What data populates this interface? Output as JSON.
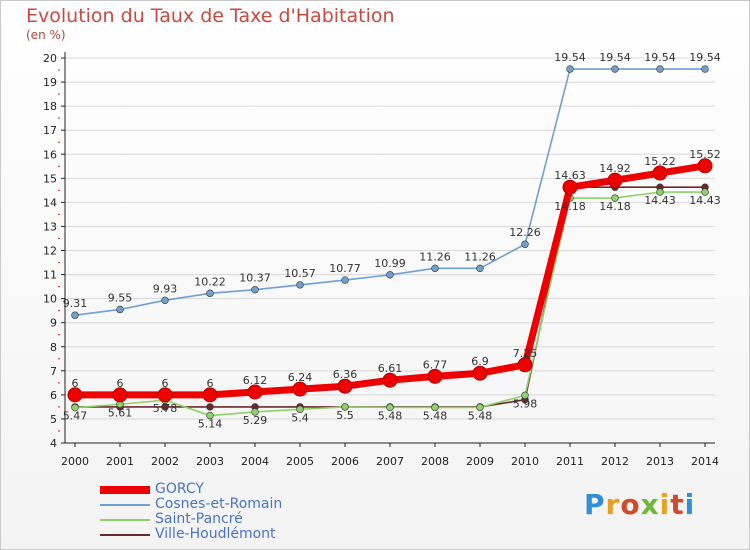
{
  "title": "Evolution du Taux de Taxe d'Habitation",
  "unit_label": "(en %)",
  "logo_text": "Proxiti",
  "colors": {
    "title": "#c94a3f",
    "legend_text": "#4a73c4",
    "axis": "#222222",
    "grid": "#d8d8d8",
    "red_tick": "#e34040"
  },
  "chart_data": {
    "type": "line",
    "title": "Evolution du Taux de Taxe d'Habitation",
    "ylabel": "(en %)",
    "xlabel": "",
    "x": [
      "2000",
      "2001",
      "2002",
      "2003",
      "2004",
      "2005",
      "2006",
      "2007",
      "2008",
      "2009",
      "2010",
      "2011",
      "2012",
      "2013",
      "2014"
    ],
    "ylim": [
      4,
      20
    ],
    "yticks": [
      "4",
      "5",
      "6",
      "7",
      "8",
      "9",
      "10",
      "11",
      "12",
      "13",
      "14",
      "15",
      "16",
      "17",
      "18",
      "19",
      "20"
    ],
    "grid": "horizontal",
    "legend_position": "bottom-left",
    "series": [
      {
        "name": "GORCY",
        "color": "#ee0000",
        "values": [
          6,
          6,
          6,
          6,
          6.12,
          6.24,
          6.36,
          6.61,
          6.77,
          6.9,
          7.25,
          14.63,
          14.92,
          15.22,
          15.52
        ],
        "labels": [
          "6",
          "6",
          "6",
          "6",
          "6.12",
          "6.24",
          "6.36",
          "6.61",
          "6.77",
          "6.9",
          "7.25",
          "14.63",
          "14.92",
          "15.22",
          "15.52"
        ]
      },
      {
        "name": "Cosnes-et-Romain",
        "color": "#6fa0d0",
        "values": [
          9.31,
          9.55,
          9.93,
          10.22,
          10.37,
          10.57,
          10.77,
          10.99,
          11.26,
          11.26,
          12.26,
          19.54,
          19.54,
          19.54,
          19.54
        ],
        "labels": [
          "9.31",
          "9.55",
          "9.93",
          "10.22",
          "10.37",
          "10.57",
          "10.77",
          "10.99",
          "11.26",
          "11.26",
          "12.26",
          "19.54",
          "19.54",
          "19.54",
          "19.54"
        ]
      },
      {
        "name": "Saint-Pancré",
        "color": "#8ed16b",
        "values": [
          5.47,
          5.61,
          5.78,
          5.14,
          5.29,
          5.4,
          5.5,
          5.48,
          5.48,
          5.48,
          5.98,
          14.18,
          14.18,
          14.43,
          14.43
        ],
        "labels": [
          "5.47",
          "5.61",
          "5.78",
          "5.14",
          "5.29",
          "5.4",
          "5.5",
          "5.48",
          "5.48",
          "5.48",
          "5.98",
          "14.18",
          "14.18",
          "14.43",
          "14.43"
        ]
      },
      {
        "name": "Ville-Houdlémont",
        "color": "#6b2a2a",
        "values": [
          5.5,
          5.5,
          5.5,
          5.5,
          5.5,
          5.5,
          5.5,
          5.5,
          5.5,
          5.5,
          5.8,
          14.63,
          14.63,
          14.63,
          14.63
        ],
        "labels": []
      }
    ]
  }
}
